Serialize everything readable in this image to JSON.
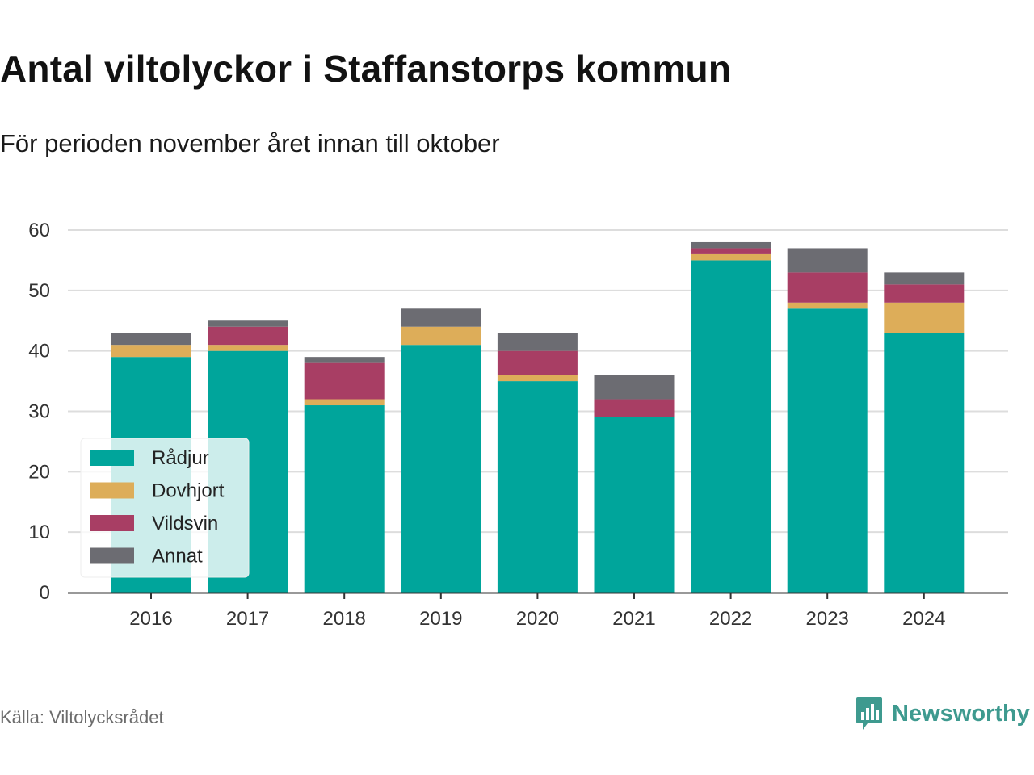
{
  "title": "Antal viltolyckor i Staffanstorps kommun",
  "subtitle": "För perioden november året innan till oktober",
  "source": "Källa: Viltolycksrådet",
  "brand": {
    "name": "Newsworthy",
    "icon": "newsworthy-logo-icon",
    "color": "#3e9a8f"
  },
  "chart_data": {
    "type": "bar",
    "stacked": true,
    "categories": [
      "2016",
      "2017",
      "2018",
      "2019",
      "2020",
      "2021",
      "2022",
      "2023",
      "2024"
    ],
    "series": [
      {
        "name": "Rådjur",
        "color": "#00a59b",
        "values": [
          39,
          40,
          31,
          41,
          35,
          29,
          55,
          47,
          43
        ]
      },
      {
        "name": "Dovhjort",
        "color": "#ddad59",
        "values": [
          2,
          1,
          1,
          3,
          1,
          0,
          1,
          1,
          5
        ]
      },
      {
        "name": "Vildsvin",
        "color": "#a83e64",
        "values": [
          0,
          3,
          6,
          0,
          4,
          3,
          1,
          5,
          3
        ]
      },
      {
        "name": "Annat",
        "color": "#6c6c72",
        "values": [
          2,
          1,
          1,
          3,
          3,
          4,
          1,
          4,
          2
        ]
      }
    ],
    "ylim": [
      0,
      60
    ],
    "yticks": [
      "0",
      "10",
      "20",
      "30",
      "40",
      "50",
      "60"
    ],
    "grid": true,
    "legend_position": "bottom-left"
  }
}
